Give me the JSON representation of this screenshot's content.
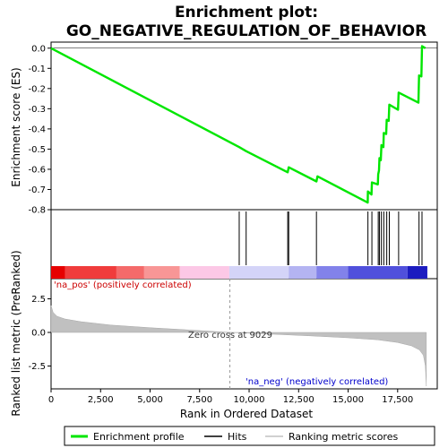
{
  "chart_data": {
    "type": "line",
    "title_lines": [
      "Enrichment plot:",
      "GO_NEGATIVE_REGULATION_OF_BEHAVIOR"
    ],
    "xlabel": "Rank in Ordered Dataset",
    "ylabel_top": "Enrichment score (ES)",
    "ylabel_bottom": "Ranked list metric (PreRanked)",
    "xlim": [
      0,
      19500
    ],
    "es_ylim": [
      -0.8,
      0.03
    ],
    "metric_ylim": [
      -4.2,
      4.0
    ],
    "x_ticks": [
      0,
      2500,
      5000,
      7500,
      10000,
      12500,
      15000,
      17500
    ],
    "x_tick_labels": [
      "0",
      "2,500",
      "5,000",
      "7,500",
      "10,000",
      "12,500",
      "15,000",
      "17,500"
    ],
    "es_ticks": [
      0.0,
      -0.1,
      -0.2,
      -0.3,
      -0.4,
      -0.5,
      -0.6,
      -0.7,
      -0.8
    ],
    "es_tick_labels": [
      "0.0",
      "-0.1",
      "-0.2",
      "-0.3",
      "-0.4",
      "-0.5",
      "-0.6",
      "-0.7",
      "-0.8"
    ],
    "metric_ticks": [
      2.5,
      0.0,
      -2.5
    ],
    "metric_tick_labels": [
      "2.5",
      "0.0",
      "-2.5"
    ],
    "es_curve": {
      "x": [
        0,
        9500,
        9850,
        11950,
        12000,
        13400,
        13450,
        15990,
        16000,
        16180,
        16200,
        16500,
        16520,
        16560,
        16580,
        16650,
        16680,
        16780,
        16800,
        16920,
        16950,
        17050,
        17080,
        17520,
        17550,
        18550,
        18580,
        18700,
        18730,
        18900
      ],
      "es": [
        0.0,
        -0.49,
        -0.51,
        -0.615,
        -0.59,
        -0.66,
        -0.635,
        -0.765,
        -0.71,
        -0.725,
        -0.665,
        -0.675,
        -0.625,
        -0.605,
        -0.545,
        -0.555,
        -0.48,
        -0.49,
        -0.42,
        -0.425,
        -0.355,
        -0.36,
        -0.28,
        -0.305,
        -0.22,
        -0.27,
        -0.135,
        -0.14,
        0.01,
        0.0
      ]
    },
    "hits": [
      9500,
      9850,
      11950,
      12000,
      13400,
      16000,
      16200,
      16520,
      16580,
      16680,
      16800,
      16950,
      17080,
      17550,
      18580,
      18730
    ],
    "color_bar": [
      {
        "from": 0,
        "to": 700,
        "color": "#e60000"
      },
      {
        "from": 700,
        "to": 3300,
        "color": "#f03c3c"
      },
      {
        "from": 3300,
        "to": 4700,
        "color": "#f46a6a"
      },
      {
        "from": 4700,
        "to": 6500,
        "color": "#f89696"
      },
      {
        "from": 6500,
        "to": 9000,
        "color": "#fcc8e6"
      },
      {
        "from": 9000,
        "to": 12000,
        "color": "#d4d4f8"
      },
      {
        "from": 12000,
        "to": 13400,
        "color": "#b4b4f2"
      },
      {
        "from": 13400,
        "to": 15000,
        "color": "#8282ea"
      },
      {
        "from": 15000,
        "to": 18000,
        "color": "#5050dc"
      },
      {
        "from": 18000,
        "to": 19000,
        "color": "#1c1cc0"
      }
    ],
    "metric_profile": {
      "x": [
        0,
        100,
        300,
        700,
        1500,
        3000,
        5000,
        7000,
        9029,
        11000,
        13000,
        15000,
        16500,
        17500,
        18200,
        18600,
        18800,
        18900,
        18950
      ],
      "y": [
        2.0,
        1.5,
        1.2,
        1.0,
        0.8,
        0.55,
        0.35,
        0.18,
        0.0,
        -0.12,
        -0.25,
        -0.4,
        -0.55,
        -0.75,
        -1.0,
        -1.3,
        -1.7,
        -2.5,
        -4.0
      ]
    },
    "annotations": {
      "pos_label": "'na_pos' (positively correlated)",
      "neg_label": "'na_neg' (negatively correlated)",
      "zero_cross_label": "Zero cross at 9029",
      "zero_cross_x": 9029
    },
    "legend": {
      "placement": "bottom",
      "entries": [
        {
          "label": "Enrichment profile",
          "color": "#00e600"
        },
        {
          "label": "Hits",
          "color": "#000000"
        },
        {
          "label": "Ranking metric scores",
          "color": "#c0c0c0"
        }
      ]
    },
    "colors": {
      "es_line": "#00e600",
      "metric_fill": "#c0c0c0",
      "pos_label": "#cc0000",
      "neg_label": "#0000cc"
    }
  }
}
